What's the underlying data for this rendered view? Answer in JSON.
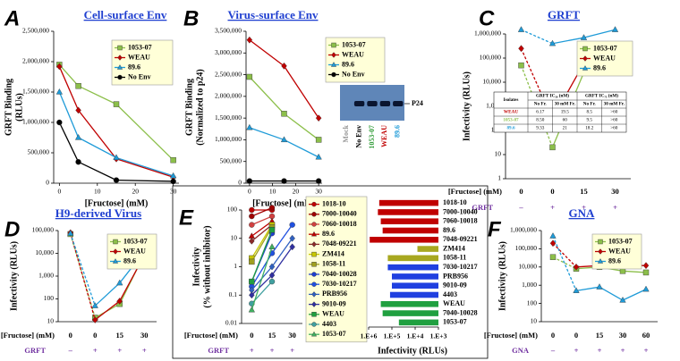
{
  "chart_data": [
    {
      "panel": "A",
      "type": "line",
      "title": "Cell-surface Env",
      "ylabel": [
        "GRFT Binding",
        "(RLUs)"
      ],
      "xlabel": "[Fructose] (mM)",
      "x": [
        0,
        5,
        15,
        30
      ],
      "xlim": [
        -1.5,
        31.5
      ],
      "xticks": [
        0,
        10,
        20,
        30
      ],
      "ylim": [
        0,
        2500000
      ],
      "yticks": [
        0,
        {
          "value": 500000,
          "label": "500,000"
        },
        {
          "value": 1000000,
          "label": "1,000,000"
        },
        {
          "value": 1500000,
          "label": "1,500,000"
        },
        {
          "value": 2000000,
          "label": "2,000,000"
        },
        {
          "value": 2500000,
          "label": "2,500,000"
        }
      ],
      "series": [
        {
          "name": "1053-07",
          "color": "#8cbf4a",
          "marker": "square",
          "values": [
            1950000,
            1600000,
            1300000,
            380000
          ]
        },
        {
          "name": "WEAU",
          "color": "#c00000",
          "marker": "diamond",
          "values": [
            1920000,
            1200000,
            400000,
            100000
          ]
        },
        {
          "name": "89.6",
          "color": "#1f9bd8",
          "marker": "triangle",
          "values": [
            1500000,
            750000,
            420000,
            120000
          ]
        },
        {
          "name": "No Env",
          "color": "#000000",
          "marker": "circle",
          "values": [
            1000000,
            350000,
            50000,
            30000
          ]
        }
      ]
    },
    {
      "panel": "B",
      "type": "line",
      "title": "Virus-surface Env",
      "ylabel": [
        "GRFT Binding",
        "(Normalized to p24)"
      ],
      "xlabel": "[Fructose] (mM)",
      "x": [
        0,
        15,
        30
      ],
      "xlim": [
        -1.5,
        31.5
      ],
      "xticks": [
        0,
        10,
        20,
        30
      ],
      "ylim": [
        0,
        3500000
      ],
      "yticks": [
        0,
        {
          "value": 500000,
          "label": "500,000"
        },
        {
          "value": 1000000,
          "label": "1,000,000"
        },
        {
          "value": 1500000,
          "label": "1,500,000"
        },
        {
          "value": 2000000,
          "label": "2,000,000"
        },
        {
          "value": 2500000,
          "label": "2,500,000"
        },
        {
          "value": 3000000,
          "label": "3,000,000"
        },
        {
          "value": 3500000,
          "label": "3,500,000"
        }
      ],
      "series": [
        {
          "name": "1053-07",
          "color": "#8cbf4a",
          "marker": "square",
          "values": [
            2450000,
            1600000,
            1000000
          ]
        },
        {
          "name": "WEAU",
          "color": "#c00000",
          "marker": "diamond",
          "values": [
            3300000,
            2700000,
            1500000
          ]
        },
        {
          "name": "89.6",
          "color": "#1f9bd8",
          "marker": "triangle",
          "values": [
            1280000,
            1000000,
            600000
          ]
        },
        {
          "name": "No Env",
          "color": "#000000",
          "marker": "circle",
          "values": [
            50000,
            50000,
            50000
          ]
        }
      ],
      "blot": {
        "lanes": [
          "Mock",
          "No Env",
          "1053-07",
          "WEAU",
          "89.6"
        ],
        "lane_colors": [
          "#999999",
          "#000000",
          "#3aa040",
          "#c00000",
          "#1f9bd8"
        ],
        "band_label": "P24"
      }
    },
    {
      "panel": "C",
      "type": "line",
      "title": "GRFT",
      "ylabel": [
        "Infectivity (RLUs)"
      ],
      "xlabel": "[Fructose] (mM)",
      "log_y": true,
      "first_segment_dashed": true,
      "categories": [
        "0",
        "0",
        "15",
        "30"
      ],
      "treatment_label": "GRFT",
      "treatment": [
        "–",
        "+",
        "+",
        "+"
      ],
      "ylim": [
        1,
        1000000
      ],
      "yticks": [
        1,
        10,
        100,
        {
          "value": 1000,
          "label": "1,000"
        },
        {
          "value": 10000,
          "label": "10,000"
        },
        {
          "value": 100000,
          "label": "100,000"
        },
        {
          "value": 1000000,
          "label": "1,000,000"
        }
      ],
      "series": [
        {
          "name": "1053-07",
          "color": "#8cbf4a",
          "marker": "square",
          "values": [
            50000,
            20,
            25000,
            30000
          ]
        },
        {
          "name": "WEAU",
          "color": "#c00000",
          "marker": "diamond",
          "values": [
            250000,
            300,
            60000,
            150000
          ]
        },
        {
          "name": "89.6",
          "color": "#1f9bd8",
          "marker": "triangle",
          "values": [
            1500000,
            400000,
            700000,
            1500000
          ]
        }
      ],
      "table": {
        "header": [
          "Isolates",
          "GRFT IC₅₀ (nM)",
          "GRFT IC₇₅ (nM)"
        ],
        "subheader": [
          "No Fr.",
          "30 mM Fr.",
          "No Fr.",
          "30 mM Fr."
        ],
        "rows": [
          [
            "WEAU",
            "6.17",
            "19.5",
            "8.5",
            ">60"
          ],
          [
            "1053-07",
            "8.50",
            "60",
            "9.5",
            ">60"
          ],
          [
            "89.6",
            "9.33",
            "21",
            "18.2",
            ">60"
          ]
        ]
      }
    },
    {
      "panel": "D",
      "type": "line",
      "title": "H9-derived Virus",
      "ylabel": [
        "Infectivity (RLUs)"
      ],
      "xlabel": "[Fructose] (mM)",
      "log_y": true,
      "first_segment_dashed": true,
      "categories": [
        "0",
        "0",
        "15",
        "30"
      ],
      "treatment_label": "GRFT",
      "treatment": [
        "–",
        "+",
        "+",
        "+"
      ],
      "ylim": [
        10,
        100000
      ],
      "yticks": [
        10,
        100,
        {
          "value": 1000,
          "label": "1,000"
        },
        {
          "value": 10000,
          "label": "10,000"
        },
        {
          "value": 100000,
          "label": "100,000"
        }
      ],
      "series": [
        {
          "name": "1053-07",
          "color": "#8cbf4a",
          "marker": "square",
          "values": [
            70000,
            15,
            60,
            9000
          ]
        },
        {
          "name": "WEAU",
          "color": "#c00000",
          "marker": "diamond",
          "values": [
            80000,
            12,
            80,
            8000
          ]
        },
        {
          "name": "89.6",
          "color": "#1f9bd8",
          "marker": "triangle",
          "values": [
            75000,
            50,
            500,
            12000
          ]
        }
      ]
    },
    {
      "panel": "E",
      "type": "line",
      "ylabel": [
        "Infectivity",
        "(% without inhibitor)"
      ],
      "xlabel": "[Fructose] (mM)",
      "log_y": true,
      "categories": [
        "0",
        "15",
        "30"
      ],
      "treatment_label": "GRFT",
      "treatment": [
        "+",
        "+",
        "+"
      ],
      "ylim": [
        0.01,
        100
      ],
      "yticks": [
        0.01,
        0.1,
        1,
        10,
        100
      ],
      "series": [
        {
          "name": "1018-10",
          "color": "#c00000",
          "marker": "circle",
          "values": [
            100,
            100,
            null
          ]
        },
        {
          "name": "7000-10040",
          "color": "#a00000",
          "marker": "circle",
          "values": [
            60,
            120,
            null
          ]
        },
        {
          "name": "7060-10018",
          "color": "#d04040",
          "marker": "circle",
          "values": [
            30,
            60,
            null
          ]
        },
        {
          "name": "89.6",
          "color": "#c00000",
          "marker": "triangle",
          "values": [
            12,
            40,
            null
          ]
        },
        {
          "name": "7048-09221",
          "color": "#8b2a2a",
          "marker": "diamond",
          "values": [
            8,
            30,
            null
          ]
        },
        {
          "name": "ZM414",
          "color": "#c8c800",
          "marker": "square",
          "values": [
            2,
            30,
            null
          ]
        },
        {
          "name": "1058-11",
          "color": "#a0a020",
          "marker": "square",
          "values": [
            1.5,
            25,
            null
          ]
        },
        {
          "name": "7040-10028",
          "color": "#1f3fd0",
          "marker": "circle",
          "values": [
            0.3,
            15,
            null
          ]
        },
        {
          "name": "7030-10217",
          "color": "#2050e0",
          "marker": "circle",
          "values": [
            0.2,
            3,
            30
          ]
        },
        {
          "name": "PRB956",
          "color": "#3060c0",
          "marker": "diamond",
          "values": [
            0.15,
            1,
            10
          ]
        },
        {
          "name": "9010-09",
          "color": "#3030a0",
          "marker": "diamond",
          "values": [
            0.1,
            0.5,
            5
          ]
        },
        {
          "name": "WEAU",
          "color": "#20a040",
          "marker": "square",
          "values": [
            0.3,
            20,
            null
          ]
        },
        {
          "name": "4403",
          "color": "#40a0a0",
          "marker": "circle",
          "values": [
            0.05,
            0.3,
            null
          ]
        },
        {
          "name": "1053-07",
          "color": "#40b060",
          "marker": "triangle",
          "values": [
            0.03,
            5,
            null
          ]
        }
      ]
    },
    {
      "type": "barh",
      "xlabel": "Infectivity (RLUs)",
      "log_x": true,
      "xlim": [
        1000000,
        1000
      ],
      "xticks": [
        {
          "value": 1000000,
          "label": "1.E+6"
        },
        {
          "value": 100000,
          "label": "1.E+5"
        },
        {
          "value": 10000,
          "label": "1.E+4"
        },
        {
          "value": 1000,
          "label": "1.E+3"
        }
      ],
      "categories": [
        "1018-10",
        "7000-10040",
        "7060-10018",
        "89.6",
        "7048-09221",
        "ZM414",
        "1058-11",
        "7030-10217",
        "PRB956",
        "9010-09",
        "4403",
        "WEAU",
        "7040-10028",
        "1053-07"
      ],
      "values": [
        350000,
        400000,
        300000,
        250000,
        900000,
        8000,
        150000,
        150000,
        100000,
        100000,
        120000,
        300000,
        250000,
        50000
      ],
      "colors": [
        "#c00000",
        "#c00000",
        "#c00000",
        "#c00000",
        "#c00000",
        "#a8a820",
        "#a8a820",
        "#2040e0",
        "#2040e0",
        "#2040e0",
        "#2040e0",
        "#20a040",
        "#20a040",
        "#20a040"
      ]
    },
    {
      "panel": "F",
      "type": "line",
      "title": "GNA",
      "ylabel": [
        "Infectivity (RLUs)"
      ],
      "xlabel": "[Fructose] (mM)",
      "log_y": true,
      "first_segment_dashed": true,
      "categories": [
        "0",
        "0",
        "15",
        "30",
        "60"
      ],
      "treatment_label": "GNA",
      "treatment": [
        "–",
        "+",
        "+",
        "+",
        "+"
      ],
      "ylim": [
        10,
        1000000
      ],
      "yticks": [
        10,
        100,
        {
          "value": 1000,
          "label": "1,000"
        },
        {
          "value": 10000,
          "label": "10,000"
        },
        {
          "value": 100000,
          "label": "100,000"
        },
        {
          "value": 1000000,
          "label": "1,000,000"
        }
      ],
      "series": [
        {
          "name": "1053-07",
          "color": "#8cbf4a",
          "marker": "square",
          "values": [
            35000,
            8000,
            10000,
            6000,
            5000
          ]
        },
        {
          "name": "WEAU",
          "color": "#c00000",
          "marker": "diamond",
          "values": [
            200000,
            10000,
            12000,
            12000,
            12000
          ]
        },
        {
          "name": "89.6",
          "color": "#1f9bd8",
          "marker": "triangle",
          "values": [
            500000,
            500,
            800,
            150,
            600
          ]
        }
      ]
    }
  ]
}
